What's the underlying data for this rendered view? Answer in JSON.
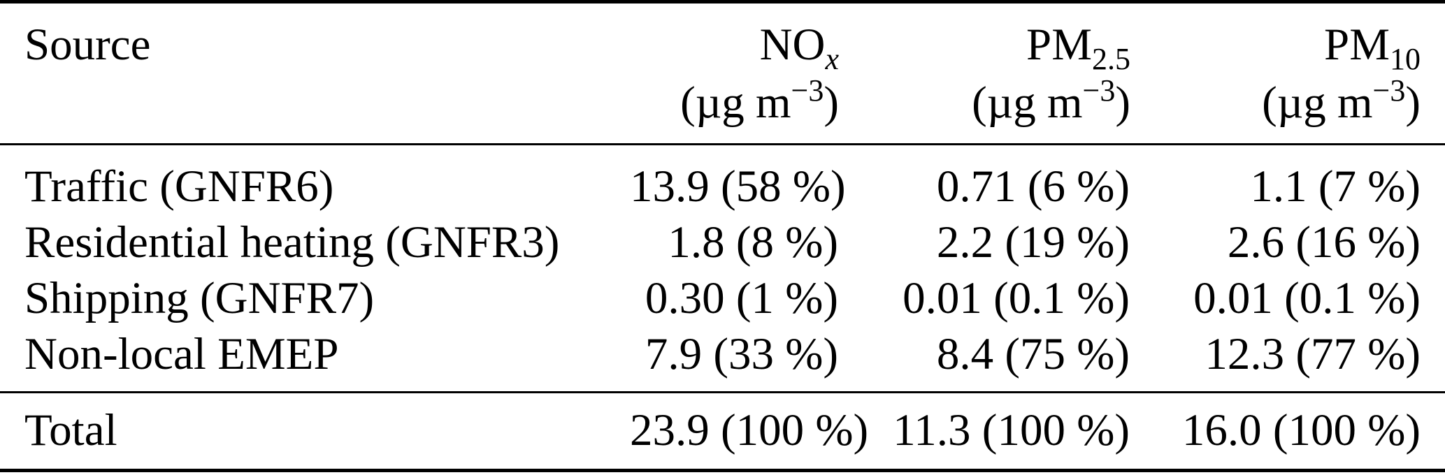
{
  "colors": {
    "background": "#ffffff",
    "text": "#000000",
    "rule": "#000000"
  },
  "table": {
    "header": {
      "source_label": "Source",
      "columns": [
        {
          "name": "NO",
          "subscript": "x",
          "unit_prefix": "(µg m",
          "unit_exponent": "−3",
          "unit_suffix": ")"
        },
        {
          "name": "PM",
          "subscript": "2.5",
          "unit_prefix": "(µg m",
          "unit_exponent": "−3",
          "unit_suffix": ")"
        },
        {
          "name": "PM",
          "subscript": "10",
          "unit_prefix": "(µg m",
          "unit_exponent": "−3",
          "unit_suffix": ")"
        }
      ]
    },
    "rows": [
      {
        "source": "Traffic (GNFR6)",
        "nox": "13.9 (58 %)",
        "pm25": "0.71 (6 %)",
        "pm10": "1.1 (7 %)"
      },
      {
        "source": "Residential heating (GNFR3)",
        "nox": "1.8 (8 %)",
        "pm25": "2.2 (19 %)",
        "pm10": "2.6 (16 %)"
      },
      {
        "source": "Shipping (GNFR7)",
        "nox": "0.30 (1 %)",
        "pm25": "0.01 (0.1 %)",
        "pm10": "0.01 (0.1 %)"
      },
      {
        "source": "Non-local EMEP",
        "nox": "7.9 (33 %)",
        "pm25": "8.4 (75 %)",
        "pm10": "12.3 (77 %)"
      }
    ],
    "total": {
      "source": "Total",
      "nox": "23.9 (100 %)",
      "pm25": "11.3 (100 %)",
      "pm10": "16.0 (100 %)"
    }
  }
}
